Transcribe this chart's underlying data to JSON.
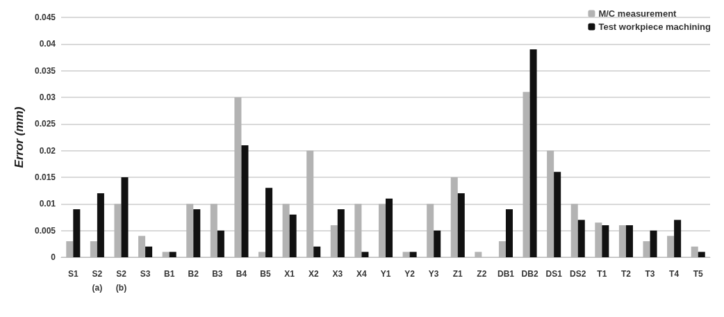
{
  "chart_data": {
    "type": "bar",
    "ylabel": "Error (mm)",
    "categories": [
      "S1",
      "S2\n(a)",
      "S2\n(b)",
      "S3",
      "B1",
      "B2",
      "B3",
      "B4",
      "B5",
      "X1",
      "X2",
      "X3",
      "X4",
      "Y1",
      "Y2",
      "Y3",
      "Z1",
      "Z2",
      "DB1",
      "DB2",
      "DS1",
      "DS2",
      "T1",
      "T2",
      "T3",
      "T4",
      "T5"
    ],
    "series": [
      {
        "name": "M/C measurement",
        "color": "#b3b3b3",
        "values": [
          0.003,
          0.003,
          0.01,
          0.004,
          0.001,
          0.01,
          0.01,
          0.03,
          0.001,
          0.01,
          0.02,
          0.006,
          0.01,
          0.01,
          0.001,
          0.01,
          0.015,
          0.001,
          0.003,
          0.031,
          0.02,
          0.01,
          0.0065,
          0.006,
          0.003,
          0.004,
          0.002
        ]
      },
      {
        "name": "Test workpiece machining",
        "color": "#111111",
        "values": [
          0.009,
          0.012,
          0.015,
          0.002,
          0.001,
          0.009,
          0.005,
          0.021,
          0.013,
          0.008,
          0.002,
          0.009,
          0.001,
          0.011,
          0.001,
          0.005,
          0.012,
          0,
          0.009,
          0.039,
          0.016,
          0.007,
          0.006,
          0.006,
          0.005,
          0.007,
          0.001
        ]
      }
    ],
    "ylim": [
      0,
      0.045
    ],
    "yticks": [
      0,
      0.005,
      0.01,
      0.015,
      0.02,
      0.025,
      0.03,
      0.035,
      0.04,
      0.045
    ],
    "grid": "y",
    "legend": "top right"
  }
}
